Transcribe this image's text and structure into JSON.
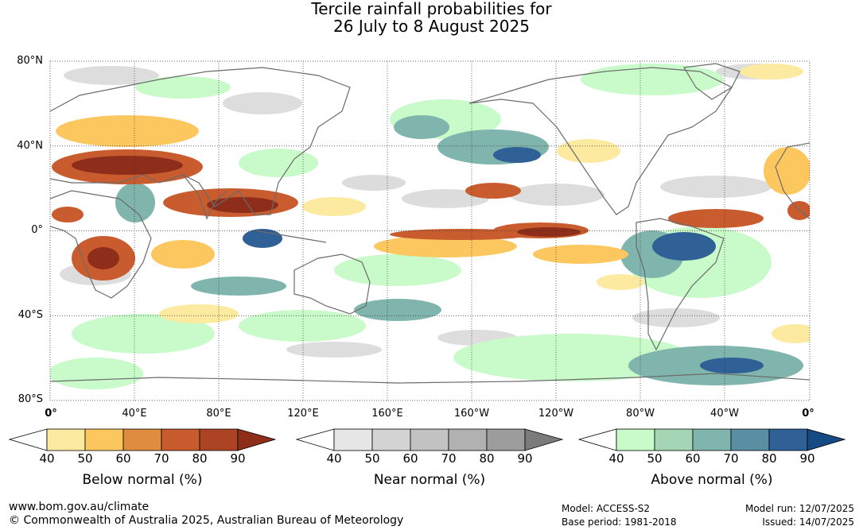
{
  "title_line1": "Tercile rainfall probabilities for",
  "title_line2": "26 July to 8 August 2025",
  "map": {
    "lat_labels": [
      "80°N",
      "40°N",
      "0°",
      "40°S",
      "80°S"
    ],
    "lon_labels": [
      "0°",
      "40°E",
      "80°E",
      "120°E",
      "160°E",
      "160°W",
      "120°W",
      "80°W",
      "40°W",
      "0°"
    ],
    "colors": {
      "ocean": "#ffffff",
      "land_outline": "#6b6b6b",
      "grid": "#333333"
    }
  },
  "legends": [
    {
      "title": "Below normal (%)",
      "ticks": [
        "40",
        "50",
        "60",
        "70",
        "80",
        "90"
      ],
      "colors": [
        "#ffffff",
        "#fdeaa1",
        "#fdc75f",
        "#e08c3e",
        "#c95c2e",
        "#ab4324",
        "#8d2d1a"
      ]
    },
    {
      "title": "Near normal (%)",
      "ticks": [
        "40",
        "50",
        "60",
        "70",
        "80",
        "90"
      ],
      "colors": [
        "#ffffff",
        "#e6e6e6",
        "#d3d3d3",
        "#c2c2c2",
        "#b1b1b1",
        "#9c9c9c",
        "#7b7b7b"
      ]
    },
    {
      "title": "Above normal (%)",
      "ticks": [
        "40",
        "50",
        "60",
        "70",
        "80",
        "90"
      ],
      "colors": [
        "#ffffff",
        "#c8fbc9",
        "#a4d6b5",
        "#80b5ad",
        "#5a8fa3",
        "#2f6096",
        "#154a84"
      ]
    }
  ],
  "footer": {
    "website": "www.bom.gov.au/climate",
    "copyright": "© Commonwealth of Australia 2025, Australian Bureau of Meteorology",
    "model": "Model: ACCESS-S2",
    "base_period": "Base period: 1981-2018",
    "model_run": "Model run: 12/07/2025",
    "issued": "Issued: 14/07/2025"
  }
}
